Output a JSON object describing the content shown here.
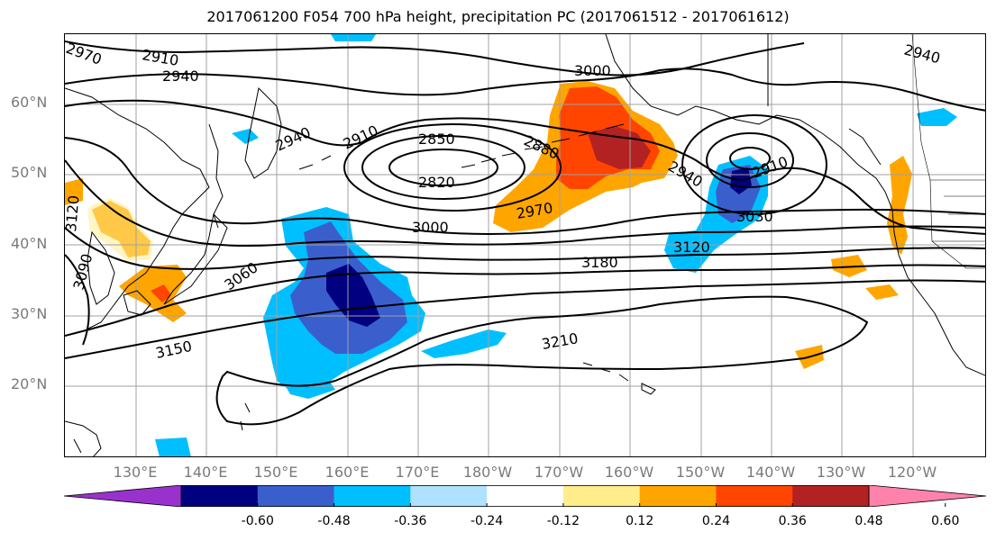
{
  "title": "2017061200 F054 700 hPa height, precipitation PC (2017061512 - 2017061612)",
  "lat_labels": [
    "60°N",
    "50°N",
    "40°N",
    "30°N",
    "20°N"
  ],
  "lon_labels": [
    "130°E",
    "140°E",
    "150°E",
    "160°E",
    "170°E",
    "180°W",
    "170°W",
    "160°W",
    "150°W",
    "140°W",
    "130°W",
    "120°W"
  ],
  "colorbar": {
    "ticks": [
      "-0.60",
      "-0.48",
      "-0.36",
      "-0.24",
      "-0.12",
      "0.12",
      "0.24",
      "0.36",
      "0.48",
      "0.60"
    ],
    "colors": [
      "#9932cc",
      "#000080",
      "#3a5fcd",
      "#00bfff",
      "#b0e2ff",
      "#ffffff",
      "#ffec8b",
      "#ffa500",
      "#ff4500",
      "#b22222",
      "#ff82ab"
    ]
  },
  "contour_labels": [
    "2910",
    "2940",
    "2970",
    "3000",
    "2910",
    "2850",
    "2820",
    "2880",
    "2940",
    "2910",
    "2940",
    "3030",
    "3000",
    "2970",
    "3120",
    "3180",
    "3060",
    "3090",
    "3120",
    "3150",
    "3210",
    "2940"
  ],
  "precip_colors": {
    "orange": "#ffa500",
    "red": "#ff4500",
    "darkred": "#b22222",
    "lightyellow": "#ffec8b",
    "blue": "#00bfff",
    "midblue": "#3a5fcd",
    "navy": "#000080"
  }
}
